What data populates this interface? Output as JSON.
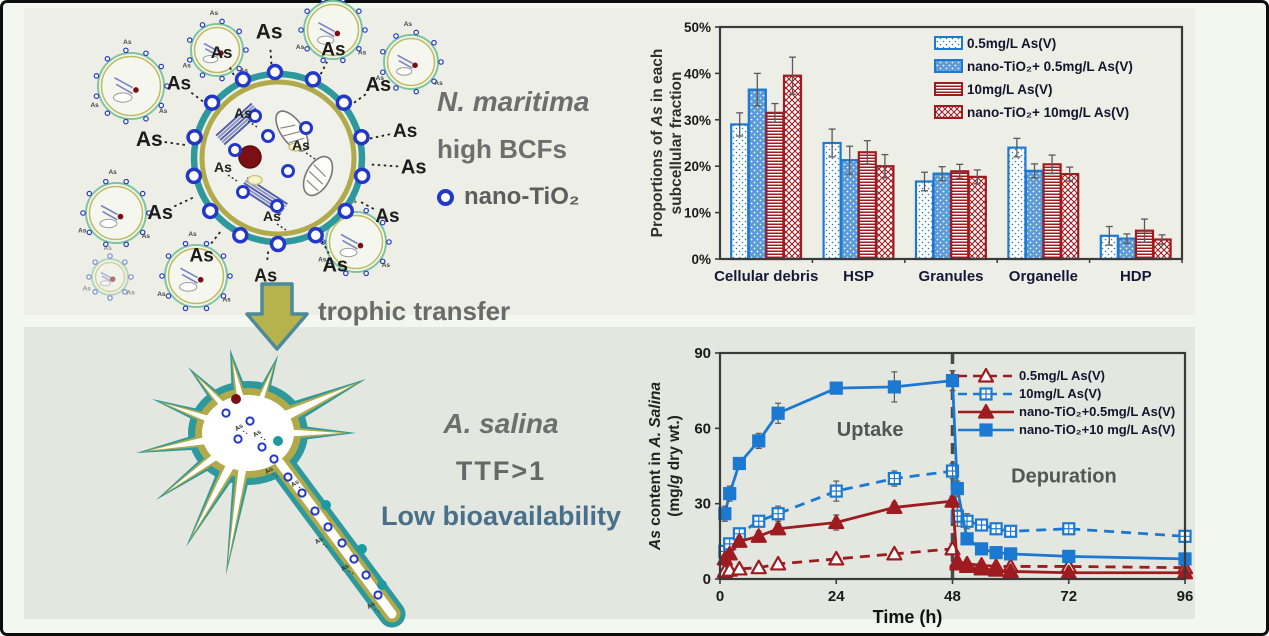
{
  "top_panel": {
    "organism": "N. maritima",
    "trait": "high BCFs",
    "legend_marker_label": "nano-TiO₂",
    "particle_label": "As"
  },
  "transfer": {
    "arrow_label": "trophic transfer"
  },
  "bottom_panel": {
    "organism": "A. salina",
    "ttf": "TTF>1",
    "bioavailability": "Low bioavailability",
    "particle_label": "As"
  },
  "colors": {
    "blue": "#1b79d2",
    "dark_red": "#9e1b20",
    "teal_outline": "#2e999c",
    "olive": "#b0aa4a",
    "gray_text": "#6a6a6a",
    "steel_blue_text": "#49708a",
    "nano_ring_blue": "#2438c8",
    "panel_top_bg": "#edefe7",
    "panel_bottom_bg": "#e3e7df"
  },
  "chart_data": [
    {
      "type": "bar",
      "title": "",
      "ylabel": "Proportions of As in each subcellular fraction",
      "ylabel_segments": [
        [
          {
            "t": "Proportions of "
          },
          {
            "t": "As",
            "i": true
          },
          {
            "t": " in each"
          }
        ],
        [
          {
            "t": "subcellular fraction"
          }
        ]
      ],
      "categories": [
        "Cellular debris",
        "HSP",
        "Granules",
        "Organelle",
        "HDP"
      ],
      "ylim": [
        0,
        50
      ],
      "yticks": [
        0,
        10,
        20,
        30,
        40,
        50
      ],
      "ytick_suffix": "%",
      "grid": false,
      "legend_position": "top-right",
      "series": [
        {
          "name": "0.5mg/L As(V)",
          "color": "#1b79d2",
          "pattern": "dot-sparse",
          "values": [
            29,
            25,
            16.7,
            24,
            5
          ],
          "errors": [
            2.5,
            3,
            2,
            2,
            2
          ]
        },
        {
          "name": "nano-TiO₂+ 0.5mg/L As(V)",
          "color": "#1b79d2",
          "pattern": "dot-dense",
          "values": [
            36.5,
            21.3,
            18.4,
            19,
            4.4
          ],
          "errors": [
            3.5,
            3,
            1.5,
            1.5,
            1
          ]
        },
        {
          "name": "10mg/L As(V)",
          "color": "#9e1b20",
          "pattern": "hlines",
          "values": [
            31.5,
            23,
            18.9,
            20.4,
            6.1
          ],
          "errors": [
            2,
            2.5,
            1.5,
            2,
            2.5
          ]
        },
        {
          "name": "nano-TiO₂+ 10mg/L As(V)",
          "color": "#9e1b20",
          "pattern": "crosshatch",
          "values": [
            39.5,
            20,
            17.7,
            18.3,
            4.2
          ],
          "errors": [
            4,
            2.5,
            1.5,
            1.5,
            1
          ]
        }
      ]
    },
    {
      "type": "line",
      "xlabel": "Time (h)",
      "ylabel": "As content in A. Salina (mg/g dry wt.)",
      "ylabel_segments": [
        [
          {
            "t": "As",
            "i": true
          },
          {
            "t": " content in "
          },
          {
            "t": "A. Salina",
            "i": true
          }
        ],
        [
          {
            "t": "(mg/",
            "i": false
          },
          {
            "t": "g",
            "i": true
          },
          {
            "t": " dry wt.)"
          }
        ]
      ],
      "xlim": [
        0,
        96
      ],
      "ylim": [
        0,
        90
      ],
      "xticks": [
        0,
        24,
        48,
        72,
        96
      ],
      "yticks": [
        0,
        30,
        60,
        90
      ],
      "phase_divider_x": 48,
      "annotations": [
        {
          "text": "Uptake",
          "x": 31,
          "y": 57
        },
        {
          "text": "Depuration",
          "x": 71,
          "y": 38.5
        }
      ],
      "series": [
        {
          "name": "0.5mg/L As(V)",
          "color": "#9e1b20",
          "line": "dashed",
          "marker": "triangle-open",
          "x": [
            1,
            2,
            4,
            8,
            12,
            24,
            36,
            48,
            49,
            51,
            54,
            57,
            60,
            72,
            96
          ],
          "y": [
            3,
            3.5,
            4,
            4.5,
            6,
            8,
            10,
            12,
            7,
            6,
            5.5,
            5,
            5,
            5,
            4.5
          ],
          "err": [
            1,
            1,
            1,
            1.5,
            1,
            1,
            1.5,
            2,
            1.5,
            1,
            1,
            1,
            1,
            1,
            1
          ]
        },
        {
          "name": "10mg/L As(V)",
          "color": "#1b79d2",
          "line": "dashed",
          "marker": "square-open",
          "x": [
            1,
            2,
            4,
            8,
            12,
            24,
            36,
            48,
            49,
            51,
            54,
            57,
            60,
            72,
            96
          ],
          "y": [
            11,
            14,
            18,
            23,
            26,
            35,
            40,
            43,
            25,
            23,
            21.5,
            20,
            19,
            20,
            17
          ],
          "err": [
            2,
            2,
            2,
            2,
            3,
            4,
            3,
            3,
            4,
            3,
            2,
            1.5,
            1.5,
            1.5,
            1.5
          ]
        },
        {
          "name": "nano-TiO₂+0.5mg/L As(V)",
          "color": "#9e1b20",
          "line": "solid",
          "marker": "triangle-filled",
          "x": [
            1,
            2,
            4,
            8,
            12,
            24,
            36,
            48,
            49,
            51,
            54,
            57,
            60,
            72,
            96
          ],
          "y": [
            8,
            10,
            15,
            17,
            20,
            22.5,
            28.5,
            31,
            6,
            5,
            4,
            3.5,
            3,
            2.5,
            2.5
          ],
          "err": [
            1.5,
            1.5,
            2,
            2,
            2,
            3,
            2,
            2,
            1.5,
            1,
            1,
            1,
            1,
            1,
            1
          ]
        },
        {
          "name": "nano-TiO₂+10 mg/L As(V)",
          "color": "#1b79d2",
          "line": "solid",
          "marker": "square-filled",
          "x": [
            1,
            2,
            4,
            8,
            12,
            24,
            36,
            48,
            49,
            51,
            54,
            57,
            60,
            72,
            96
          ],
          "y": [
            26,
            34,
            46,
            55,
            66,
            76,
            76.5,
            79,
            36,
            16,
            12,
            10.5,
            10,
            9,
            8
          ],
          "err": [
            3,
            3,
            2,
            3,
            4,
            2,
            6,
            4,
            3,
            2,
            1.5,
            1,
            1,
            1.5,
            1
          ]
        }
      ]
    }
  ]
}
